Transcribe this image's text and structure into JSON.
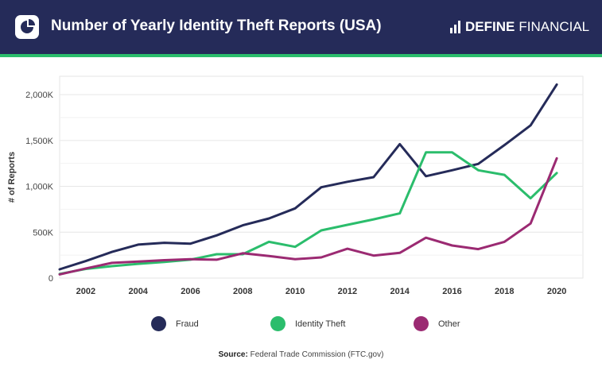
{
  "header": {
    "title": "Number of Yearly Identity Theft Reports (USA)",
    "brand_strong": "DEFINE",
    "brand_light": "FINANCIAL"
  },
  "colors": {
    "header_bg": "#252b59",
    "accent": "#2bbd6c",
    "fraud": "#252b59",
    "identity_theft": "#2bbd6c",
    "other": "#9b2a72"
  },
  "source": {
    "label": "Source:",
    "text": "Federal Trade Commission (FTC.gov)"
  },
  "chart_data": {
    "type": "line",
    "title": "Number of Yearly Identity Theft Reports (USA)",
    "ylabel": "# of Reports",
    "xlabel": "",
    "xlim": [
      2001,
      2021
    ],
    "ylim": [
      0,
      2200
    ],
    "x_ticks": [
      2002,
      2004,
      2006,
      2008,
      2010,
      2012,
      2014,
      2016,
      2018,
      2020
    ],
    "y_ticks": [
      0,
      500,
      1000,
      1500,
      2000
    ],
    "y_tick_labels": [
      "0",
      "500K",
      "1,000K",
      "1,500K",
      "2,000K"
    ],
    "grid": "horizontal",
    "legend": "bottom",
    "x": [
      2001,
      2002,
      2003,
      2004,
      2005,
      2006,
      2007,
      2008,
      2009,
      2010,
      2011,
      2012,
      2013,
      2014,
      2015,
      2016,
      2017,
      2018,
      2019,
      2020
    ],
    "series": [
      {
        "name": "Fraud",
        "color": "#252b59",
        "values": [
          95,
          185,
          285,
          365,
          385,
          375,
          465,
          575,
          650,
          760,
          990,
          1050,
          1100,
          1460,
          1110,
          1175,
          1245,
          1450,
          1665,
          2110
        ]
      },
      {
        "name": "Identity Theft",
        "color": "#2bbd6c",
        "values": [
          45,
          100,
          130,
          155,
          175,
          200,
          260,
          260,
          395,
          340,
          520,
          580,
          640,
          705,
          1370,
          1370,
          1175,
          1125,
          870,
          1145
        ]
      },
      {
        "name": "Other",
        "color": "#9b2a72",
        "values": [
          40,
          105,
          165,
          180,
          195,
          205,
          200,
          270,
          240,
          205,
          225,
          320,
          245,
          275,
          440,
          355,
          315,
          395,
          595,
          1305
        ]
      }
    ]
  }
}
